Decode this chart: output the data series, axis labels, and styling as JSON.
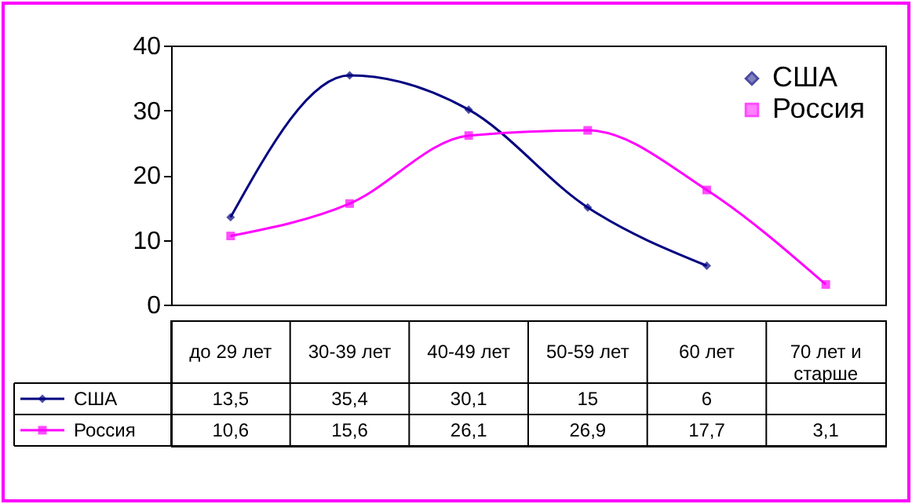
{
  "chart_data": {
    "type": "line",
    "categories": [
      "до 29 лет",
      "30-39 лет",
      "40-49 лет",
      "50-59 лет",
      "60 лет",
      "70 лет и старше"
    ],
    "series": [
      {
        "name": "США",
        "color": "#000080",
        "marker": "diamond",
        "values": [
          13.5,
          35.4,
          30.1,
          15,
          6,
          null
        ],
        "value_labels": [
          "13,5",
          "35,4",
          "30,1",
          "15",
          "6",
          null
        ]
      },
      {
        "name": "Россия",
        "color": "#ff00ff",
        "marker": "square",
        "values": [
          10.6,
          15.6,
          26.1,
          26.9,
          17.7,
          3.1
        ],
        "value_labels": [
          "10,6",
          "15,6",
          "26,1",
          "26,9",
          "17,7",
          "3,1"
        ]
      }
    ],
    "ylim": [
      0,
      40
    ],
    "yticks": [
      0,
      10,
      20,
      30,
      40
    ],
    "legend": "top right",
    "line_style": "solid"
  }
}
